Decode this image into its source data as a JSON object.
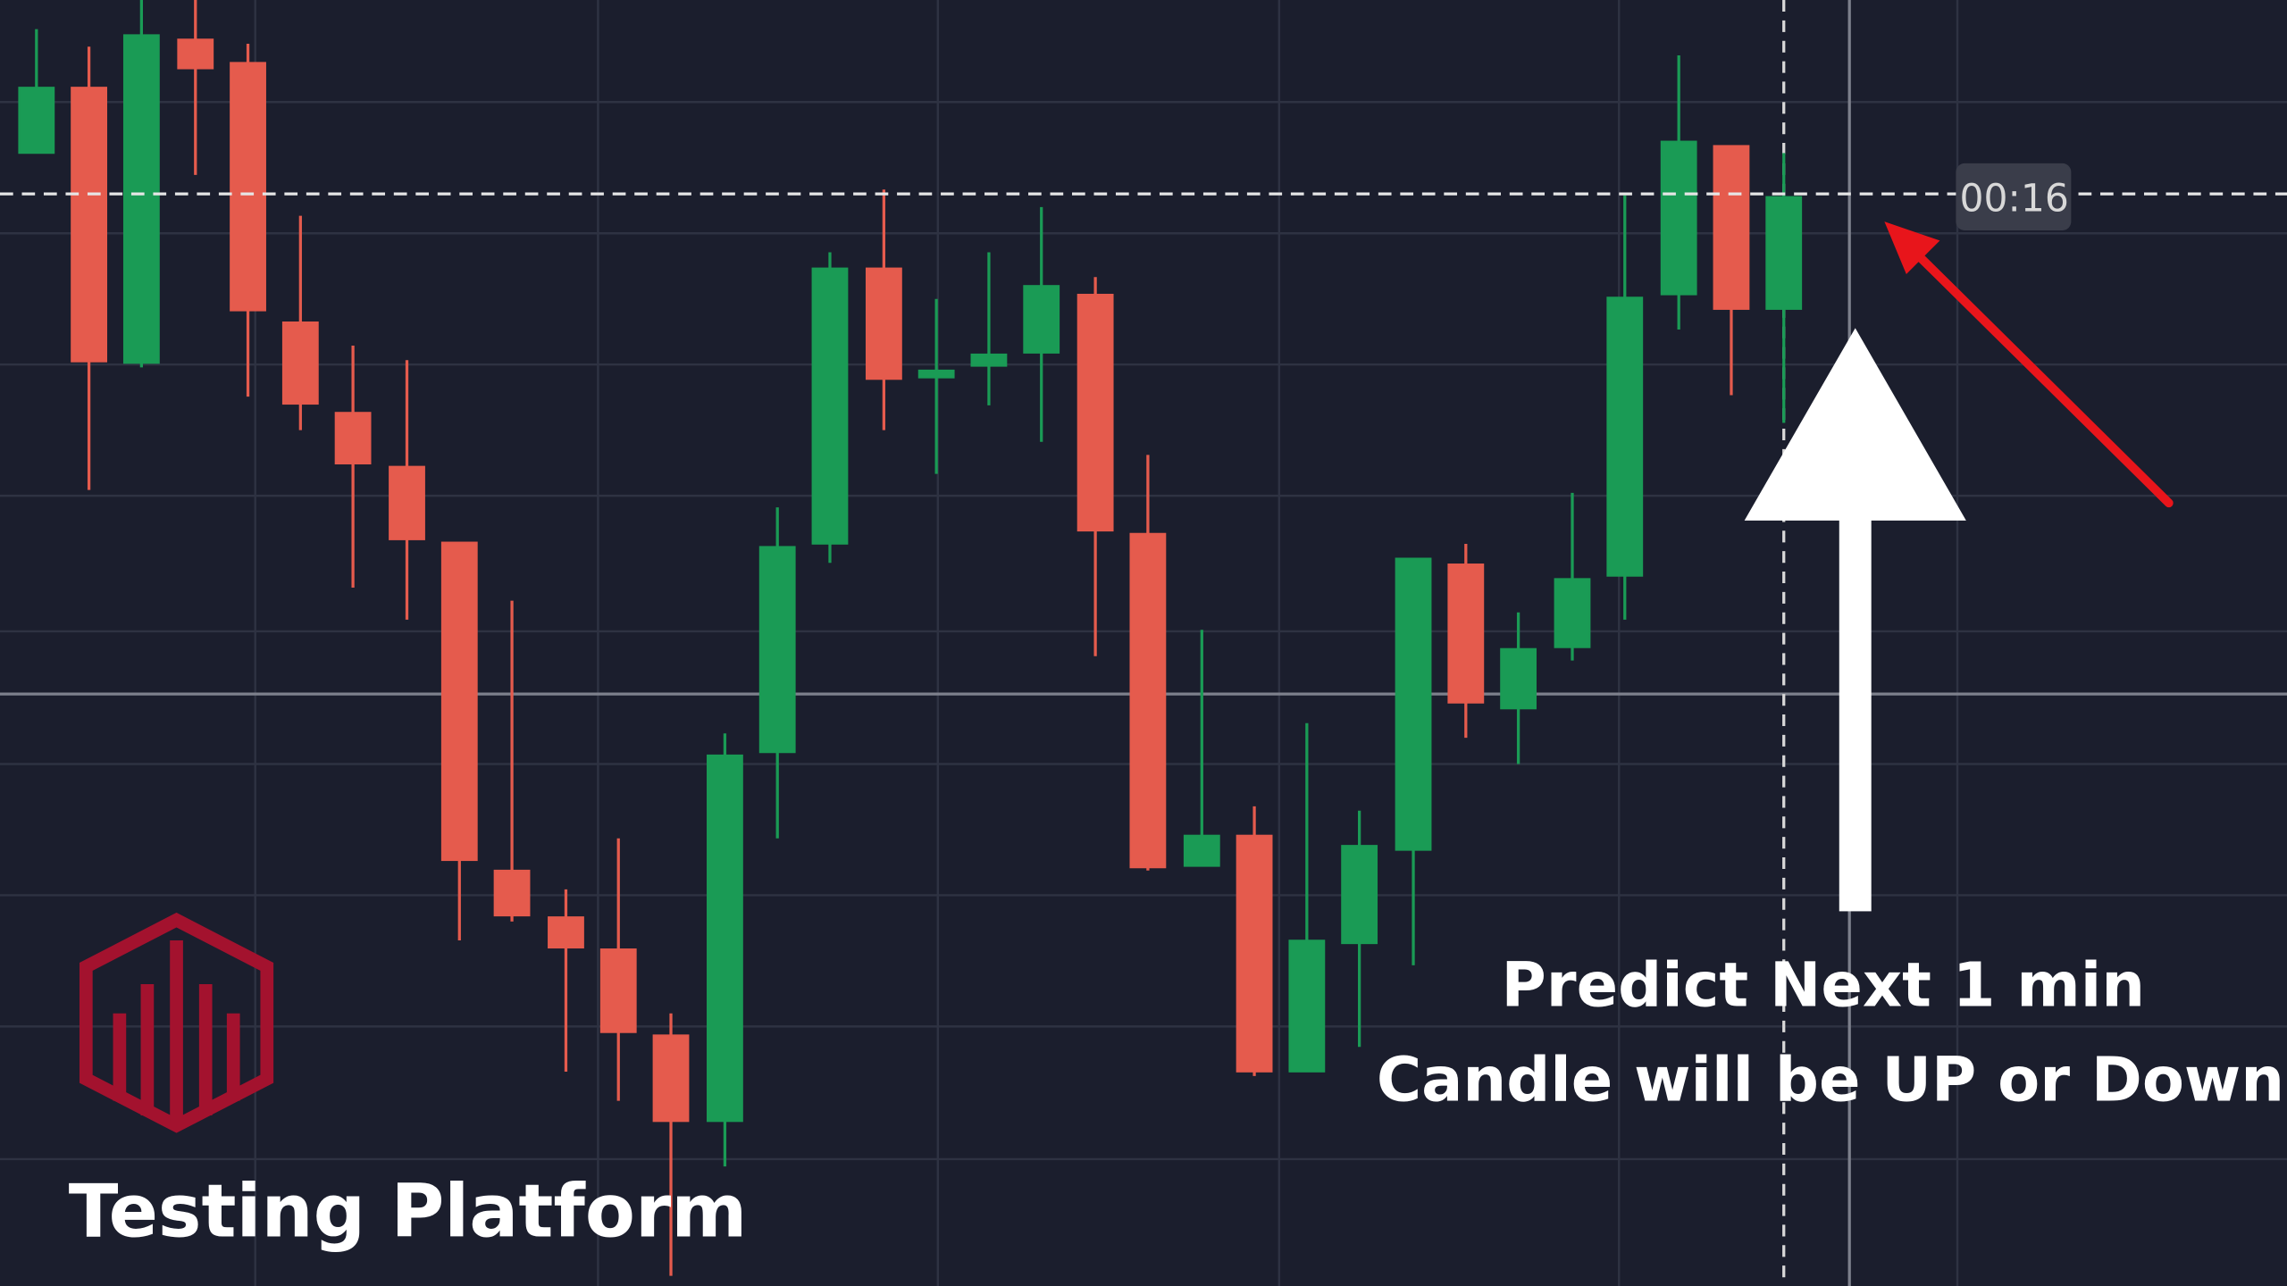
{
  "timer": "00:16",
  "caption": {
    "line1": "Predict Next 1 min",
    "line2": "Candle will be UP or Down"
  },
  "brand": "Testing Platform"
}
